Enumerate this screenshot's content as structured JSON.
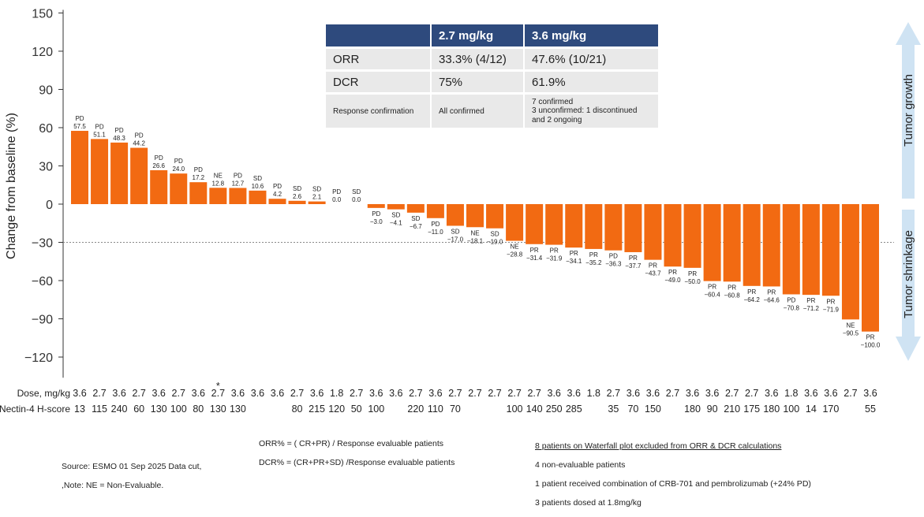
{
  "chart_data": {
    "type": "bar",
    "title": "",
    "ylabel": "Change from baseline (%)",
    "ylim": [
      -130,
      150
    ],
    "yticks": [
      150,
      120,
      90,
      60,
      30,
      0,
      -30,
      -60,
      -90,
      -120
    ],
    "reference_line": -30,
    "bar_color": "#f26a12",
    "bars": [
      {
        "status": "PD",
        "value": 57.5,
        "label": "57.5",
        "dose": "3.6",
        "hscore": "13"
      },
      {
        "status": "PD",
        "value": 51.1,
        "label": "51.1",
        "dose": "2.7",
        "hscore": "115"
      },
      {
        "status": "PD",
        "value": 48.3,
        "label": "48.3",
        "dose": "3.6",
        "hscore": "240"
      },
      {
        "status": "PD",
        "value": 44.2,
        "label": "44.2",
        "dose": "2.7",
        "hscore": "60"
      },
      {
        "status": "PD",
        "value": 26.6,
        "label": "26.6",
        "dose": "3.6",
        "hscore": "130"
      },
      {
        "status": "PD",
        "value": 24.0,
        "label": "24.0",
        "dose": "2.7",
        "hscore": "100"
      },
      {
        "status": "PD",
        "value": 17.2,
        "label": "17.2",
        "dose": "3.6",
        "hscore": "80"
      },
      {
        "status": "NE",
        "value": 12.8,
        "label": "12.8",
        "dose": "2.7",
        "hscore": "130",
        "star": true
      },
      {
        "status": "PD",
        "value": 12.7,
        "label": "12.7",
        "dose": "3.6",
        "hscore": "130"
      },
      {
        "status": "SD",
        "value": 10.6,
        "label": "10.6",
        "dose": "3.6",
        "hscore": ""
      },
      {
        "status": "PD",
        "value": 4.2,
        "label": "4.2",
        "dose": "3.6",
        "hscore": ""
      },
      {
        "status": "SD",
        "value": 2.6,
        "label": "2.6",
        "dose": "2.7",
        "hscore": "80"
      },
      {
        "status": "SD",
        "value": 2.1,
        "label": "2.1",
        "dose": "3.6",
        "hscore": "215"
      },
      {
        "status": "PD",
        "value": 0.0,
        "label": "0.0",
        "dose": "1.8",
        "hscore": "120"
      },
      {
        "status": "SD",
        "value": 0.0,
        "label": "0.0",
        "dose": "2.7",
        "hscore": "50"
      },
      {
        "status": "PD",
        "value": -3.0,
        "label": "−3.0",
        "dose": "3.6",
        "hscore": "100"
      },
      {
        "status": "SD",
        "value": -4.1,
        "label": "−4.1",
        "dose": "3.6",
        "hscore": ""
      },
      {
        "status": "SD",
        "value": -6.7,
        "label": "−6.7",
        "dose": "2.7",
        "hscore": "220"
      },
      {
        "status": "PD",
        "value": -11.0,
        "label": "−11.0",
        "dose": "3.6",
        "hscore": "110"
      },
      {
        "status": "SD",
        "value": -17.0,
        "label": "−17.0",
        "dose": "2.7",
        "hscore": "70"
      },
      {
        "status": "NE",
        "value": -18.1,
        "label": "−18.1",
        "dose": "2.7",
        "hscore": ""
      },
      {
        "status": "SD",
        "value": -19.0,
        "label": "−19.0",
        "dose": "2.7",
        "hscore": ""
      },
      {
        "status": "NE",
        "value": -28.8,
        "label": "−28.8",
        "dose": "2.7",
        "hscore": "100"
      },
      {
        "status": "PR",
        "value": -31.4,
        "label": "−31.4",
        "dose": "2.7",
        "hscore": "140"
      },
      {
        "status": "PR",
        "value": -31.9,
        "label": "−31.9",
        "dose": "3.6",
        "hscore": "250"
      },
      {
        "status": "PR",
        "value": -34.1,
        "label": "−34.1",
        "dose": "3.6",
        "hscore": "285"
      },
      {
        "status": "PR",
        "value": -35.2,
        "label": "−35.2",
        "dose": "1.8",
        "hscore": ""
      },
      {
        "status": "PD",
        "value": -36.3,
        "label": "−36.3",
        "dose": "2.7",
        "hscore": "35"
      },
      {
        "status": "PR",
        "value": -37.7,
        "label": "−37.7",
        "dose": "3.6",
        "hscore": "70"
      },
      {
        "status": "PR",
        "value": -43.7,
        "label": "−43.7",
        "dose": "3.6",
        "hscore": "150"
      },
      {
        "status": "PR",
        "value": -49.0,
        "label": "−49.0",
        "dose": "2.7",
        "hscore": ""
      },
      {
        "status": "PR",
        "value": -50.0,
        "label": "−50.0",
        "dose": "3.6",
        "hscore": "180"
      },
      {
        "status": "PR",
        "value": -60.4,
        "label": "−60.4",
        "dose": "3.6",
        "hscore": "90"
      },
      {
        "status": "PR",
        "value": -60.8,
        "label": "−60.8",
        "dose": "2.7",
        "hscore": "210"
      },
      {
        "status": "PR",
        "value": -64.2,
        "label": "−64.2",
        "dose": "2.7",
        "hscore": "175"
      },
      {
        "status": "PR",
        "value": -64.6,
        "label": "−64.6",
        "dose": "3.6",
        "hscore": "180"
      },
      {
        "status": "PD",
        "value": -70.8,
        "label": "−70.8",
        "dose": "1.8",
        "hscore": "100"
      },
      {
        "status": "PR",
        "value": -71.2,
        "label": "−71.2",
        "dose": "3.6",
        "hscore": "14"
      },
      {
        "status": "PR",
        "value": -71.9,
        "label": "−71.9",
        "dose": "3.6",
        "hscore": "170"
      },
      {
        "status": "NE",
        "value": -90.5,
        "label": "−90.5",
        "dose": "2.7",
        "hscore": ""
      },
      {
        "status": "PR",
        "value": -100.0,
        "label": "−100.0",
        "dose": "3.6",
        "hscore": "55"
      }
    ],
    "row_labels": {
      "dose": "Dose, mg/kg",
      "hscore": "Nectin-4 H-score"
    },
    "arrows": {
      "up": "Tumor growth",
      "down": "Tumor shrinkage",
      "color": "#cfe3f3"
    }
  },
  "table": {
    "headers": [
      "",
      "2.7 mg/kg",
      "3.6 mg/kg"
    ],
    "rows": [
      [
        "ORR",
        "33.3% (4/12)",
        "47.6% (10/21)"
      ],
      [
        "DCR",
        "75%",
        "61.9%"
      ],
      [
        "Response confirmation",
        "All confirmed",
        "7 confirmed\n3 unconfirmed: 1 discontinued and 2 ongoing"
      ]
    ]
  },
  "formula": {
    "orr": "ORR% = ( CR+PR) / Response evaluable patients",
    "dcr": "DCR% = (CR+PR+SD) /Response evaluable patients"
  },
  "excluded": {
    "title": "8 patients on Waterfall plot excluded from ORR & DCR calculations",
    "lines": [
      "4  non-evaluable patients",
      "1 patient received combination of CRB-701 and pembrolizumab (+24% PD)",
      "3 patients dosed at  1.8mg/kg"
    ]
  },
  "source": {
    "line1": "Source: ESMO 01 Sep 2025 Data cut,",
    "line2": ",Note: NE = Non-Evaluable."
  }
}
